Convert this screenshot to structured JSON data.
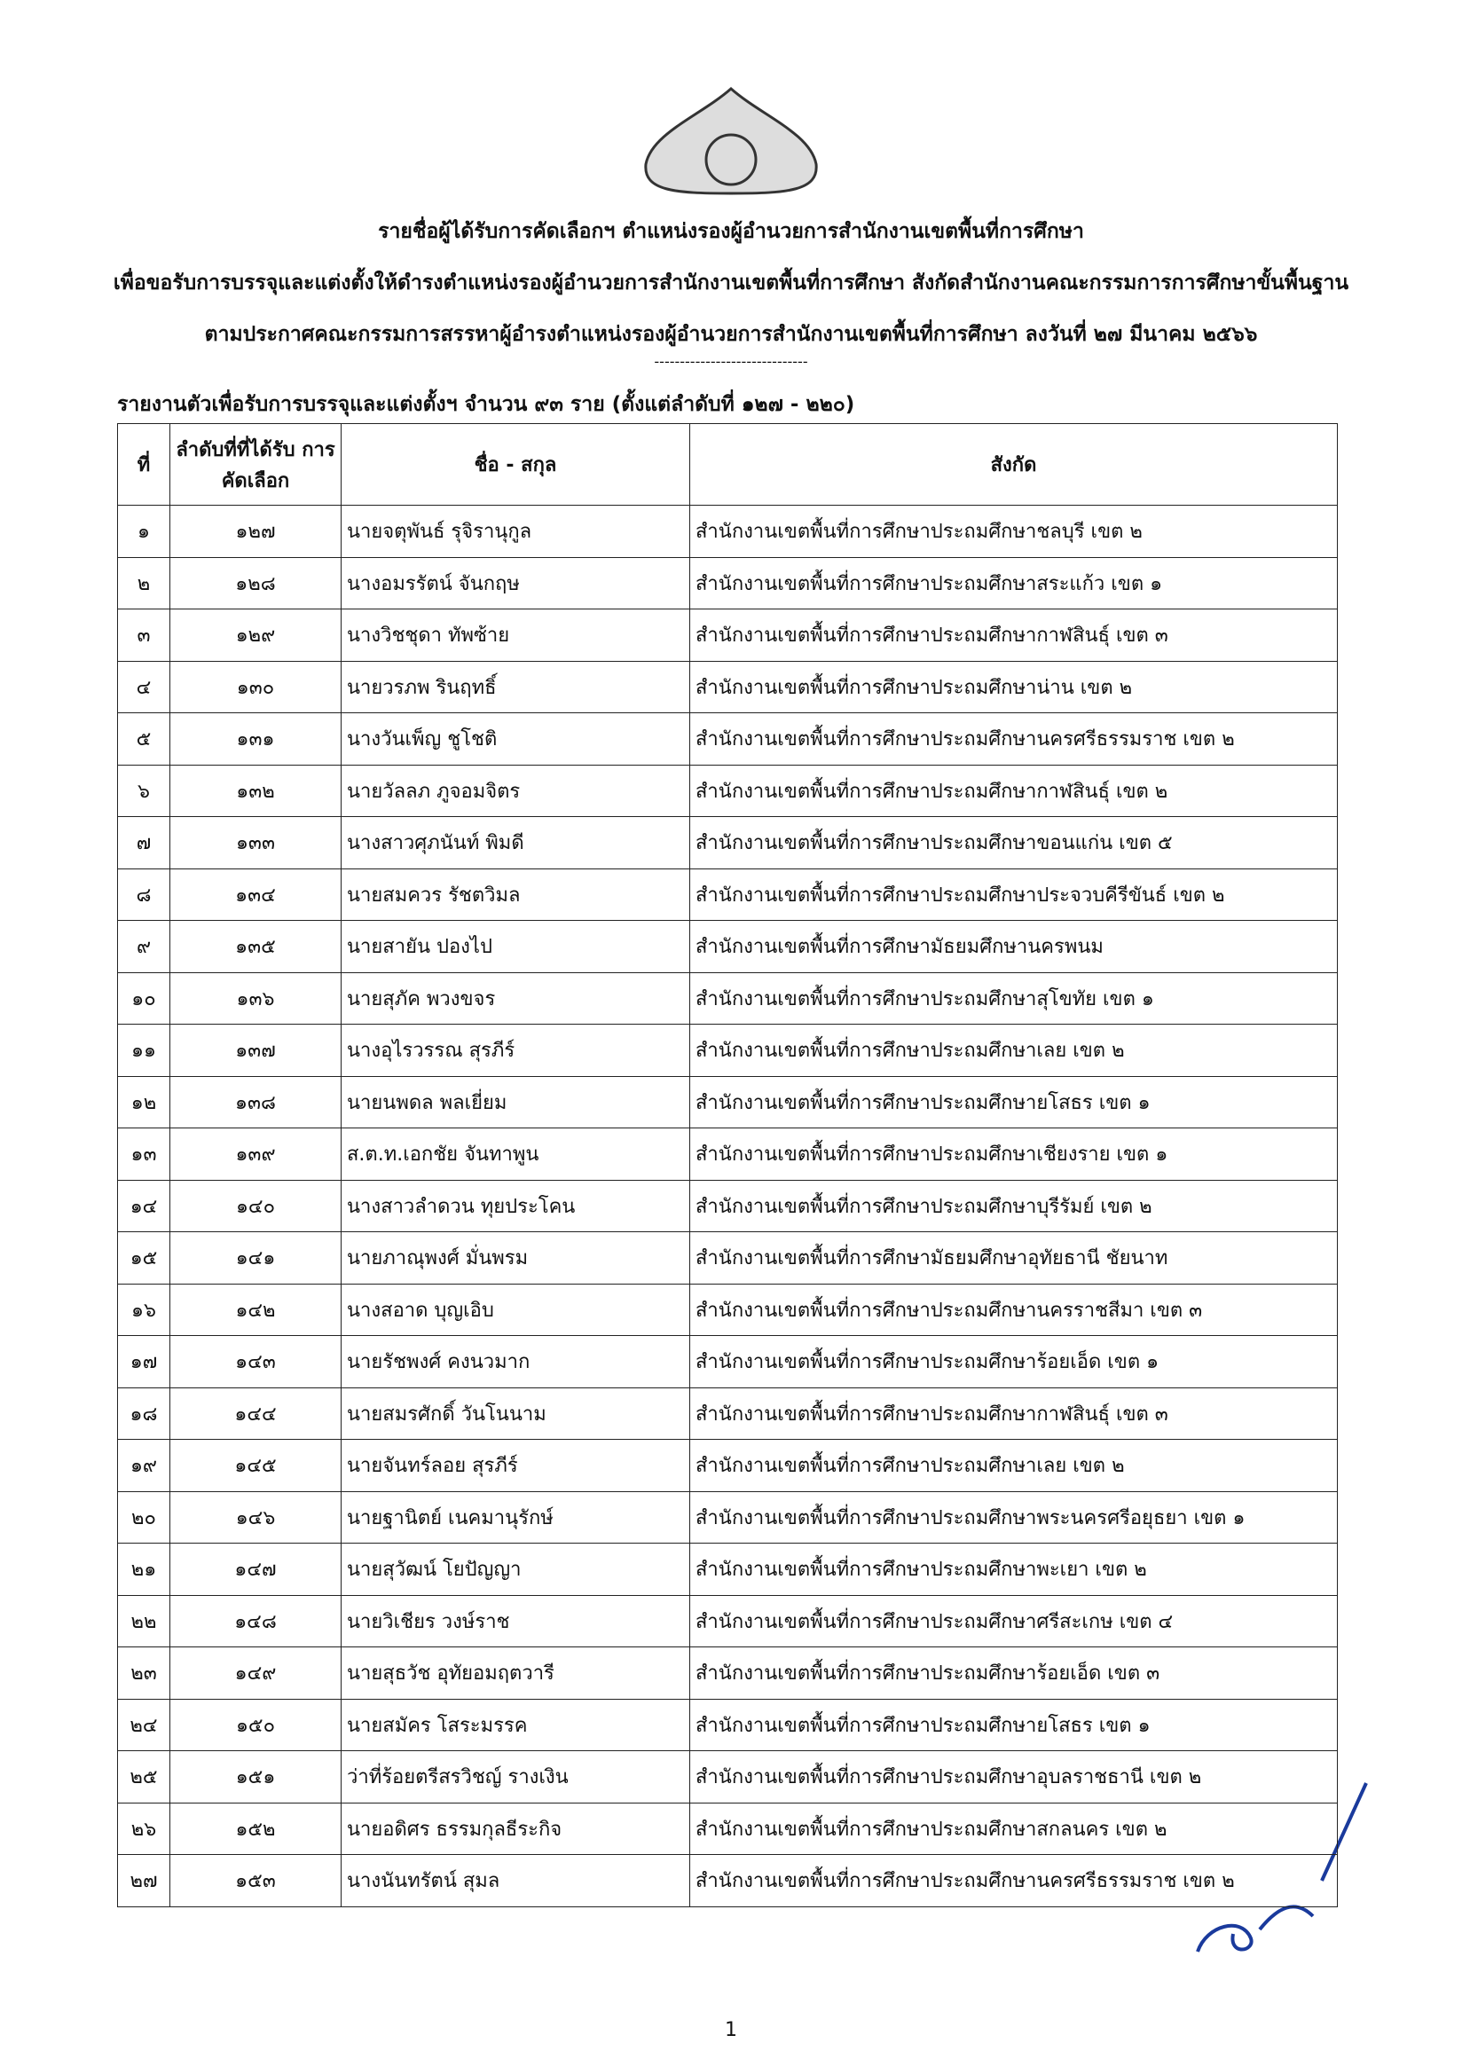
{
  "header": {
    "line1": "รายชื่อผู้ได้รับการคัดเลือกฯ ตำแหน่งรองผู้อำนวยการสำนักงานเขตพื้นที่การศึกษา",
    "line2": "เพื่อขอรับการบรรจุและแต่งตั้งให้ดำรงตำแหน่งรองผู้อำนวยการสำนักงานเขตพื้นที่การศึกษา สังกัดสำนักงานคณะกรรมการการศึกษาขั้นพื้นฐาน",
    "line3": "ตามประกาศคณะกรรมการสรรหาผู้อำรงตำแหน่งรองผู้อำนวยการสำนักงานเขตพื้นที่การศึกษา ลงวันที่ ๒๗ มีนาคม ๒๕๖๖",
    "divider": "------------------------------",
    "subtitle": "รายงานตัวเพื่อรับการบรรจุและแต่งตั้งฯ จำนวน ๙๓ ราย (ตั้งแต่ลำดับที่ ๑๒๗ - ๒๒๐)"
  },
  "table": {
    "columns": [
      "ที่",
      "ลำดับที่ที่ได้รับ การคัดเลือก",
      "ชื่อ - สกุล",
      "สังกัด"
    ],
    "rows": [
      [
        "๑",
        "๑๒๗",
        "นายจตุพันธ์  รุจิรานุกูล",
        "สำนักงานเขตพื้นที่การศึกษาประถมศึกษาชลบุรี เขต ๒"
      ],
      [
        "๒",
        "๑๒๘",
        "นางอมรรัตน์  จันกฤษ",
        "สำนักงานเขตพื้นที่การศึกษาประถมศึกษาสระแก้ว เขต ๑"
      ],
      [
        "๓",
        "๑๒๙",
        "นางวิชชุดา  ทัพซ้าย",
        "สำนักงานเขตพื้นที่การศึกษาประถมศึกษากาฬสินธุ์ เขต ๓"
      ],
      [
        "๔",
        "๑๓๐",
        "นายวรภพ  รินฤทธิ์",
        "สำนักงานเขตพื้นที่การศึกษาประถมศึกษาน่าน เขต ๒"
      ],
      [
        "๕",
        "๑๓๑",
        "นางวันเพ็ญ  ชูโชติ",
        "สำนักงานเขตพื้นที่การศึกษาประถมศึกษานครศรีธรรมราช เขต ๒"
      ],
      [
        "๖",
        "๑๓๒",
        "นายวัลลภ  ภูจอมจิตร",
        "สำนักงานเขตพื้นที่การศึกษาประถมศึกษากาฬสินธุ์ เขต ๒"
      ],
      [
        "๗",
        "๑๓๓",
        "นางสาวศุภนันท์  พิมดี",
        "สำนักงานเขตพื้นที่การศึกษาประถมศึกษาขอนแก่น เขต ๕"
      ],
      [
        "๘",
        "๑๓๔",
        "นายสมควร  รัชตวิมล",
        "สำนักงานเขตพื้นที่การศึกษาประถมศึกษาประจวบคีรีขันธ์ เขต ๒"
      ],
      [
        "๙",
        "๑๓๕",
        "นายสายัน  ปองไป",
        "สำนักงานเขตพื้นที่การศึกษามัธยมศึกษานครพนม"
      ],
      [
        "๑๐",
        "๑๓๖",
        "นายสุภัค  พวงขจร",
        "สำนักงานเขตพื้นที่การศึกษาประถมศึกษาสุโขทัย เขต ๑"
      ],
      [
        "๑๑",
        "๑๓๗",
        "นางอุไรวรรณ  สุรภีร์",
        "สำนักงานเขตพื้นที่การศึกษาประถมศึกษาเลย เขต ๒"
      ],
      [
        "๑๒",
        "๑๓๘",
        "นายนพดล  พลเยี่ยม",
        "สำนักงานเขตพื้นที่การศึกษาประถมศึกษายโสธร เขต ๑"
      ],
      [
        "๑๓",
        "๑๓๙",
        "ส.ต.ท.เอกชัย  จันทาพูน",
        "สำนักงานเขตพื้นที่การศึกษาประถมศึกษาเชียงราย เขต ๑"
      ],
      [
        "๑๔",
        "๑๔๐",
        "นางสาวลำดวน  ทุยประโคน",
        "สำนักงานเขตพื้นที่การศึกษาประถมศึกษาบุรีรัมย์ เขต ๒"
      ],
      [
        "๑๕",
        "๑๔๑",
        "นายภาณุพงศ์  มั่นพรม",
        "สำนักงานเขตพื้นที่การศึกษามัธยมศึกษาอุทัยธานี ชัยนาท"
      ],
      [
        "๑๖",
        "๑๔๒",
        "นางสอาด  บุญเอิบ",
        "สำนักงานเขตพื้นที่การศึกษาประถมศึกษานครราชสีมา เขต ๓"
      ],
      [
        "๑๗",
        "๑๔๓",
        "นายรัชพงศ์  คงนวมาก",
        "สำนักงานเขตพื้นที่การศึกษาประถมศึกษาร้อยเอ็ด เขต ๑"
      ],
      [
        "๑๘",
        "๑๔๔",
        "นายสมรศักดิ์  วันโนนาม",
        "สำนักงานเขตพื้นที่การศึกษาประถมศึกษากาฬสินธุ์ เขต ๓"
      ],
      [
        "๑๙",
        "๑๔๕",
        "นายจันทร์ลอย  สุรภีร์",
        "สำนักงานเขตพื้นที่การศึกษาประถมศึกษาเลย เขต ๒"
      ],
      [
        "๒๐",
        "๑๔๖",
        "นายฐานิตย์  เนคมานุรักษ์",
        "สำนักงานเขตพื้นที่การศึกษาประถมศึกษาพระนครศรีอยุธยา เขต ๑"
      ],
      [
        "๒๑",
        "๑๔๗",
        "นายสุวัฒน์  โยปัญญา",
        "สำนักงานเขตพื้นที่การศึกษาประถมศึกษาพะเยา เขต ๒"
      ],
      [
        "๒๒",
        "๑๔๘",
        "นายวิเชียร  วงษ์ราช",
        "สำนักงานเขตพื้นที่การศึกษาประถมศึกษาศรีสะเกษ เขต ๔"
      ],
      [
        "๒๓",
        "๑๔๙",
        "นายสุธวัช  อุทัยอมฤตวารี",
        "สำนักงานเขตพื้นที่การศึกษาประถมศึกษาร้อยเอ็ด เขต ๓"
      ],
      [
        "๒๔",
        "๑๕๐",
        "นายสมัคร  โสระมรรค",
        "สำนักงานเขตพื้นที่การศึกษาประถมศึกษายโสธร เขต ๑"
      ],
      [
        "๒๕",
        "๑๕๑",
        "ว่าที่ร้อยตรีสรวิชญ์  รางเงิน",
        "สำนักงานเขตพื้นที่การศึกษาประถมศึกษาอุบลราชธานี เขต ๒"
      ],
      [
        "๒๖",
        "๑๕๒",
        "นายอดิศร  ธรรมกุลธีระกิจ",
        "สำนักงานเขตพื้นที่การศึกษาประถมศึกษาสกลนคร เขต ๒"
      ],
      [
        "๒๗",
        "๑๕๓",
        "นางนันทรัตน์  สุมล",
        "สำนักงานเขตพื้นที่การศึกษาประถมศึกษานครศรีธรรมราช เขต ๒"
      ]
    ]
  },
  "footer": {
    "page": "1"
  }
}
